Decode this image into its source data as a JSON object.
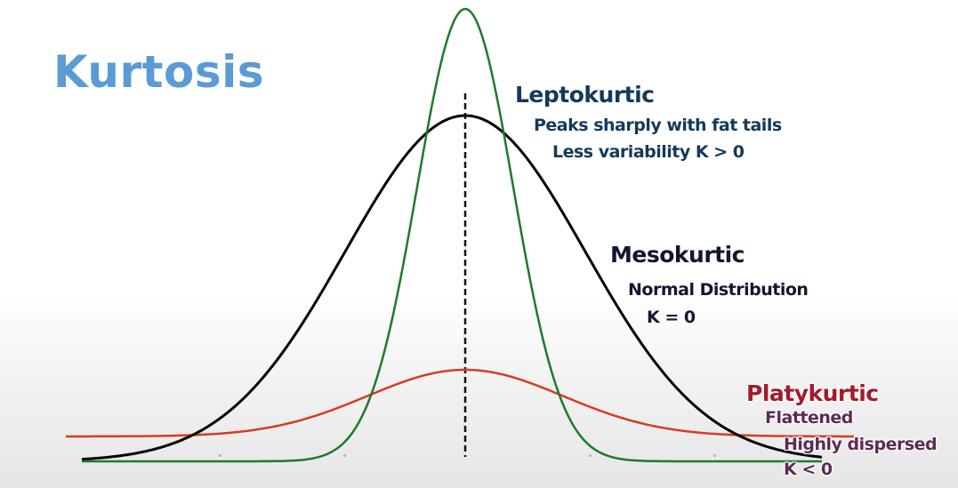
{
  "title": "Kurtosis",
  "labels": {
    "leptokurtic": {
      "name": "Leptokurtic",
      "line1": "Peaks sharply with fat tails",
      "line2": "Less variability K > 0"
    },
    "mesokurtic": {
      "name": "Mesokurtic",
      "line1": "Normal Distribution",
      "line2": "K = 0"
    },
    "platykurtic": {
      "name": "Platykurtic",
      "line1": "Flattened",
      "line2": "Highly dispersed",
      "line3": "K < 0"
    }
  },
  "colors": {
    "title": "#5b9bd5",
    "leptokurtic_curve": "#1e7a2a",
    "mesokurtic_curve": "#000000",
    "platykurtic_curve": "#d83a22",
    "center_line": "#111111"
  }
}
